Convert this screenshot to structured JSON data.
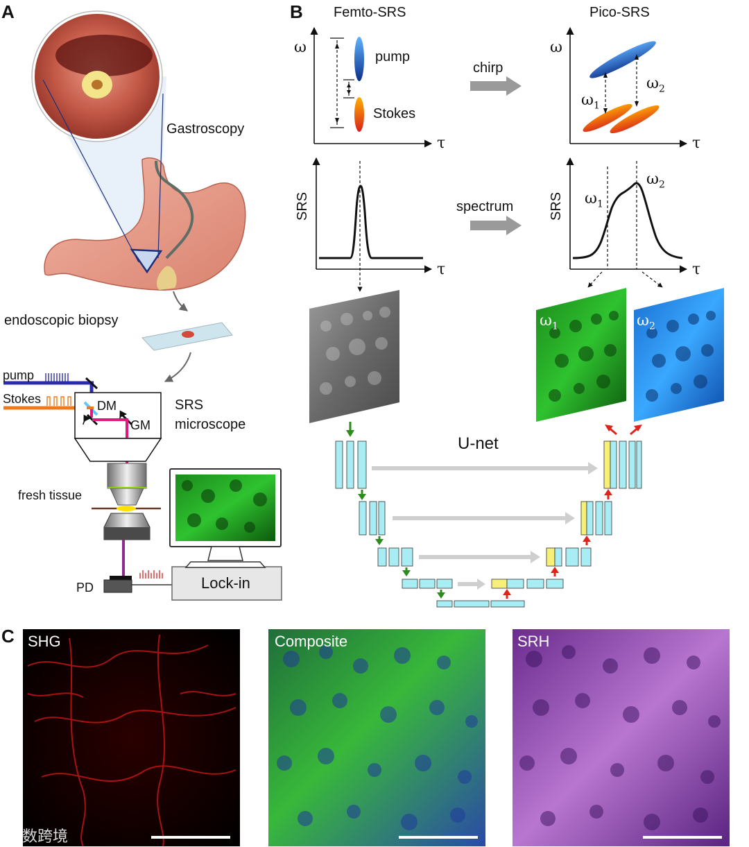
{
  "panels": {
    "a": "A",
    "b": "B",
    "c": "C"
  },
  "panel_a": {
    "gastroscopy": "Gastroscopy",
    "endoscopic_biopsy": "endoscopic biopsy",
    "pump": "pump",
    "stokes": "Stokes",
    "dm": "DM",
    "gm": "GM",
    "srs_microscope_1": "SRS",
    "srs_microscope_2": "microscope",
    "fresh_tissue": "fresh tissue",
    "pd": "PD",
    "lockin": "Lock-in"
  },
  "panel_b": {
    "femto_title": "Femto-SRS",
    "pico_title": "Pico-SRS",
    "omega": "ω",
    "tau": "τ",
    "srs": "SRS",
    "pump": "pump",
    "stokes": "Stokes",
    "chirp": "chirp",
    "spectrum": "spectrum",
    "omega1": "ω",
    "omega1_sub": "1",
    "omega2": "ω",
    "omega2_sub": "2",
    "unet": "U-net"
  },
  "panel_c": {
    "shg": "SHG",
    "composite": "Composite",
    "srh": "SRH"
  },
  "watermark": "大数跨境",
  "colors": {
    "pump_blue": "#1f4fa8",
    "stokes_orange": "#f07a1a",
    "magenta_path": "#e0197d",
    "purple_path": "#8e2a8e",
    "unet_block": "#a8ecf4",
    "unet_skip": "#f6f079",
    "arrow_gray": "#bdbdbd",
    "down_arrow": "#2e8b1e",
    "up_arrow": "#e0241c"
  }
}
